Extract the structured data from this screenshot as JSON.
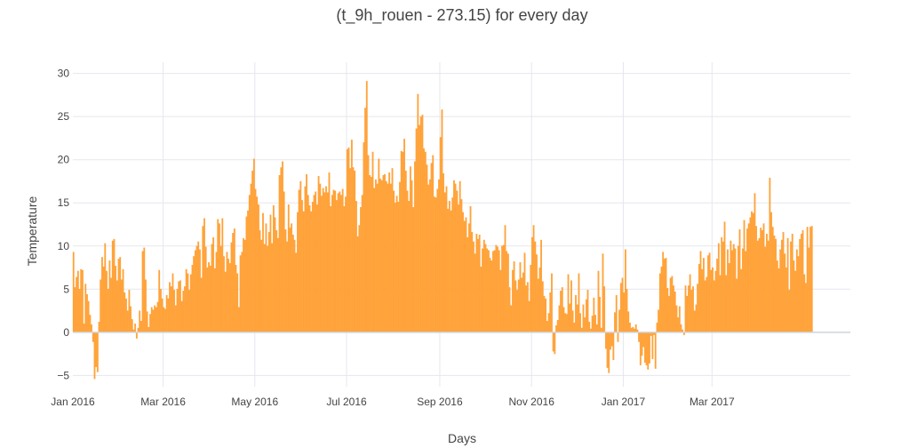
{
  "chart_data": {
    "type": "bar",
    "title": "(t_9h_rouen - 273.15) for every day",
    "xlabel": "Days",
    "ylabel": "Temperature",
    "x_start": "2016-01-01",
    "x_end": "2017-05-31",
    "x_tick_labels": [
      "Jan 2016",
      "Mar 2016",
      "May 2016",
      "Jul 2016",
      "Sep 2016",
      "Nov 2016",
      "Jan 2017",
      "Mar 2017"
    ],
    "x_tick_dates": [
      "2016-01-01",
      "2016-03-01",
      "2016-05-01",
      "2016-07-01",
      "2016-09-01",
      "2016-11-01",
      "2017-01-01",
      "2017-03-01"
    ],
    "ylim": [
      -6.3,
      31.3
    ],
    "y_ticks": [
      -5,
      0,
      5,
      10,
      15,
      20,
      25,
      30
    ],
    "y_tick_labels": [
      "−5",
      "0",
      "5",
      "10",
      "15",
      "20",
      "25",
      "30"
    ],
    "grid": true,
    "bar_color": "#FFA33A",
    "series": [
      {
        "values": [
          9.3,
          5.2,
          6.4,
          7.1,
          5.0,
          7.3,
          7.2,
          1.0,
          5.6,
          4.4,
          3.6,
          2.0,
          0.9,
          -1.1,
          -5.4,
          -4.0,
          -4.6,
          1.2,
          6.1,
          8.7,
          7.6,
          10.3,
          7.1,
          5.0,
          8.3,
          6.3,
          10.6,
          10.8,
          7.7,
          6.0,
          8.5,
          8.7,
          6.1,
          7.3,
          4.6,
          3.9,
          2.5,
          4.9,
          3.0,
          1.5,
          0.3,
          1.0,
          -0.7,
          0.5,
          2.5,
          1.3,
          9.4,
          9.8,
          6.1,
          2.4,
          0.6,
          2.1,
          2.9,
          2.6,
          3.1,
          2.9,
          3.5,
          7.2,
          5.0,
          3.9,
          2.9,
          2.7,
          4.3,
          3.9,
          5.8,
          5.3,
          6.8,
          4.9,
          3.1,
          5.0,
          5.9,
          6.0,
          3.6,
          4.8,
          5.3,
          7.3,
          6.8,
          4.9,
          6.7,
          7.8,
          8.8,
          9.5,
          10.0,
          10.5,
          9.6,
          6.3,
          12.3,
          13.2,
          9.9,
          7.5,
          8.1,
          7.7,
          10.2,
          11.0,
          7.4,
          9.3,
          13.1,
          12.6,
          10.0,
          13.2,
          8.8,
          7.0,
          9.3,
          8.5,
          8.0,
          10.4,
          11.5,
          12.0,
          7.8,
          6.8,
          2.9,
          8.9,
          9.3,
          10.9,
          10.7,
          13.4,
          14.1,
          15.9,
          17.2,
          18.7,
          20.1,
          16.6,
          15.7,
          14.8,
          11.8,
          10.7,
          13.8,
          10.2,
          12.6,
          10.0,
          11.6,
          13.6,
          10.3,
          14.7,
          13.3,
          11.8,
          10.9,
          18.2,
          19.1,
          19.8,
          16.3,
          11.9,
          10.5,
          14.8,
          12.1,
          12.6,
          11.3,
          10.7,
          9.2,
          13.9,
          16.5,
          17.5,
          15.3,
          14.0,
          16.9,
          18.3,
          15.9,
          14.7,
          14.0,
          15.1,
          15.9,
          16.3,
          14.8,
          18.1,
          17.2,
          15.8,
          16.7,
          16.2,
          16.9,
          16.2,
          18.5,
          14.6,
          15.9,
          16.5,
          16.4,
          15.3,
          16.1,
          16.3,
          15.9,
          16.6,
          14.6,
          15.7,
          21.2,
          21.4,
          19.0,
          22.3,
          19.1,
          18.7,
          15.2,
          11.1,
          12.4,
          14.5,
          15.9,
          22.0,
          26.0,
          29.1,
          20.5,
          18.2,
          18.0,
          20.9,
          16.7,
          17.7,
          17.2,
          20.1,
          17.8,
          17.6,
          18.2,
          18.3,
          17.5,
          17.2,
          18.5,
          17.2,
          19.0,
          16.4,
          15.0,
          15.8,
          15.1,
          17.4,
          21.0,
          20.9,
          22.4,
          18.7,
          16.4,
          15.2,
          19.2,
          17.6,
          14.5,
          19.8,
          23.6,
          27.6,
          24.0,
          25.0,
          25.2,
          21.3,
          20.9,
          19.4,
          17.1,
          17.7,
          19.6,
          20.5,
          15.7,
          15.6,
          16.6,
          17.7,
          22.6,
          25.8,
          18.4,
          16.2,
          16.9,
          14.3,
          15.2,
          14.1,
          15.6,
          17.6,
          17.2,
          16.4,
          14.8,
          17.5,
          15.4,
          13.9,
          12.9,
          13.3,
          11.0,
          12.6,
          14.6,
          11.6,
          10.5,
          9.1,
          11.4,
          10.8,
          11.3,
          7.6,
          9.7,
          10.7,
          10.2,
          9.7,
          9.5,
          8.6,
          8.3,
          9.4,
          9.5,
          10.1,
          9.9,
          9.5,
          7.2,
          10.0,
          10.1,
          12.4,
          9.4,
          9.1,
          5.2,
          3.1,
          7.2,
          8.2,
          6.0,
          4.9,
          6.1,
          8.1,
          6.3,
          6.9,
          9.2,
          5.4,
          5.8,
          3.6,
          7.8,
          11.0,
          12.4,
          10.5,
          9.0,
          6.2,
          7.5,
          10.7,
          5.9,
          4.2,
          3.9,
          1.3,
          2.2,
          4.6,
          6.8,
          -2.2,
          -2.5,
          0.8,
          1.4,
          3.1,
          4.8,
          5.2,
          2.9,
          2.2,
          2.1,
          6.7,
          3.3,
          6.0,
          2.5,
          1.1,
          4.3,
          3.2,
          6.8,
          2.2,
          0.5,
          3.2,
          1.7,
          3.8,
          4.9,
          1.2,
          0.4,
          1.9,
          4.0,
          2.0,
          0.9,
          7.1,
          4.1,
          0.5,
          9.1,
          5.3,
          -1.9,
          -4.1,
          -4.7,
          -2.0,
          -1.6,
          -3.2,
          2.3,
          4.3,
          -1.1,
          2.6,
          5.7,
          6.3,
          4.6,
          9.6,
          5.0,
          2.4,
          1.1,
          0.5,
          0.6,
          0.4,
          0.9,
          0.3,
          -1.1,
          -3.8,
          -2.7,
          -1.7,
          -3.5,
          -3.8,
          -4.3,
          -3.6,
          -0.4,
          -3.1,
          -0.3,
          -4.2,
          1.1,
          2.6,
          6.8,
          7.6,
          9.3,
          8.5,
          8.6,
          5.1,
          4.2,
          6.3,
          6.5,
          5.4,
          4.7,
          3.1,
          1.7,
          3.0,
          0.9,
          0.3,
          -0.3,
          5.4,
          4.2,
          5.4,
          6.7,
          4.9,
          5.3,
          2.5,
          3.2,
          5.6,
          7.9,
          9.4,
          7.3,
          8.6,
          6.0,
          6.4,
          8.9,
          9.2,
          7.2,
          7.5,
          6.0,
          7.1,
          8.5,
          10.3,
          6.6,
          11.0,
          10.5,
          12.8,
          6.6,
          9.6,
          8.0,
          10.6,
          9.5,
          10.2,
          9.7,
          6.2,
          10.0,
          11.9,
          7.3,
          9.7,
          13.0,
          9.4,
          12.0,
          12.6,
          13.3,
          14.0,
          13.8,
          16.1,
          12.3,
          10.6,
          10.9,
          12.1,
          11.8,
          12.6,
          9.9,
          11.4,
          10.6,
          17.9,
          13.9,
          12.2,
          11.2,
          10.8,
          8.3,
          7.4,
          9.6,
          10.7,
          11.6,
          9.1,
          7.5,
          10.9,
          4.9,
          10.5,
          11.4,
          8.3,
          7.1,
          9.6,
          8.8,
          10.8,
          11.4,
          11.8,
          6.7,
          5.7,
          12.2,
          9.8,
          12.2,
          12.3
        ]
      }
    ]
  }
}
